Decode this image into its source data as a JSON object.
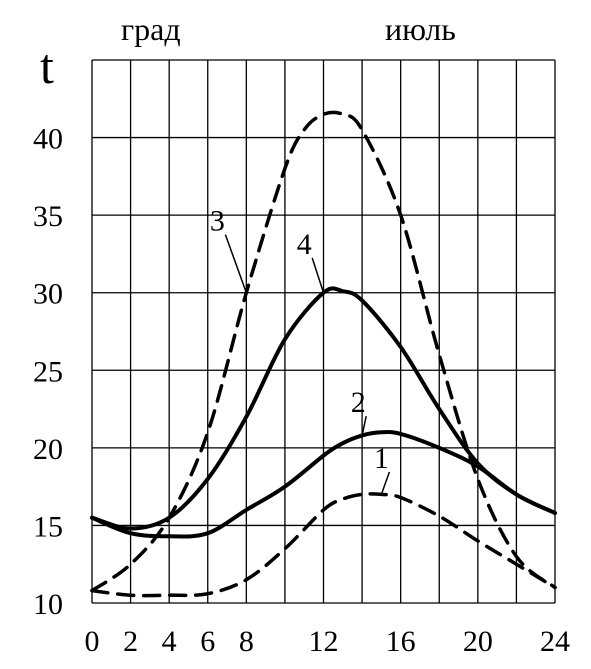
{
  "chart_data": {
    "type": "line",
    "ylabel": "t",
    "unit_label": "град",
    "month_label": "июль",
    "xlim": [
      0,
      24
    ],
    "ylim": [
      10,
      45
    ],
    "x_ticks": [
      0,
      2,
      4,
      6,
      8,
      12,
      16,
      20,
      24
    ],
    "y_ticks": [
      10,
      15,
      20,
      25,
      30,
      35,
      40
    ],
    "x_grid": [
      0,
      2,
      4,
      6,
      8,
      10,
      12,
      14,
      16,
      18,
      20,
      22,
      24
    ],
    "grid": true,
    "series": [
      {
        "name": "1",
        "style": "dashed",
        "x": [
          0,
          2,
          4,
          6,
          8,
          10,
          12,
          13,
          14,
          15,
          16,
          18,
          20,
          22,
          24
        ],
        "y": [
          10.8,
          10.5,
          10.5,
          10.6,
          11.5,
          13.5,
          16.0,
          16.7,
          17.0,
          17.0,
          16.8,
          15.6,
          14.0,
          12.5,
          11.0
        ],
        "label_at": [
          15,
          18.7
        ]
      },
      {
        "name": "2",
        "style": "solid",
        "x": [
          0,
          2,
          4,
          6,
          8,
          10,
          12,
          13,
          14,
          15,
          16,
          18,
          20,
          22,
          24
        ],
        "y": [
          15.5,
          14.5,
          14.3,
          14.5,
          16.0,
          17.5,
          19.5,
          20.3,
          20.8,
          21.0,
          20.9,
          20.0,
          18.8,
          17.0,
          15.8
        ],
        "label_at": [
          13.8,
          22.3
        ]
      },
      {
        "name": "3",
        "style": "dashed",
        "x": [
          0,
          2,
          4,
          6,
          8,
          10,
          11,
          12,
          13,
          14,
          16,
          18,
          20,
          22,
          24
        ],
        "y": [
          10.8,
          12.5,
          15.5,
          21.0,
          30.0,
          38.0,
          40.5,
          41.5,
          41.5,
          40.5,
          35.0,
          26.0,
          18.0,
          13.0,
          11.0
        ],
        "label_at": [
          6.5,
          34.0
        ]
      },
      {
        "name": "4",
        "style": "solid",
        "x": [
          0,
          2,
          4,
          6,
          8,
          10,
          12,
          13,
          14,
          16,
          18,
          20,
          22,
          24
        ],
        "y": [
          15.5,
          14.8,
          15.5,
          18.0,
          22.0,
          27.0,
          30.0,
          30.1,
          29.5,
          26.5,
          22.5,
          19.0,
          17.0,
          15.8
        ],
        "label_at": [
          11.0,
          32.5
        ]
      }
    ]
  }
}
